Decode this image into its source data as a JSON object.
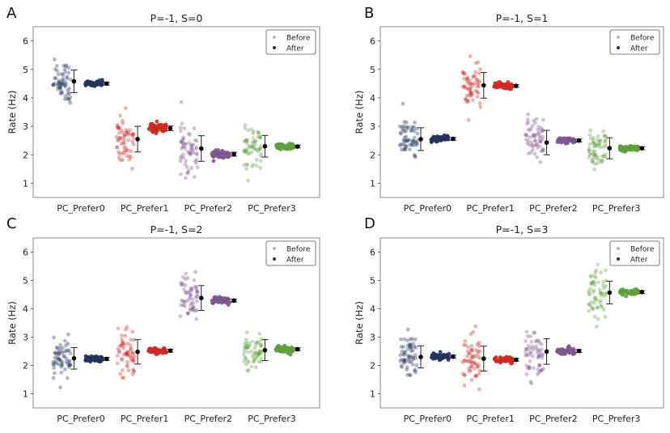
{
  "chart_data": [
    {
      "type": "scatter",
      "panel_label": "A",
      "title": "P=-1, S=0",
      "xlabel": "",
      "ylabel": "Rate (Hz)",
      "ylim": [
        0.5,
        6.5
      ],
      "yticks": [
        1,
        2,
        3,
        4,
        5,
        6
      ],
      "categories": [
        "PC_Prefer0",
        "PC_Prefer1",
        "PC_Prefer2",
        "PC_Prefer3"
      ],
      "legend": {
        "entries": [
          "Before",
          "After"
        ],
        "position": "top-right"
      },
      "series": [
        {
          "name": "Before",
          "mean": [
            4.58,
            2.55,
            2.22,
            2.3
          ],
          "sd": [
            0.4,
            0.45,
            0.45,
            0.38
          ]
        },
        {
          "name": "After",
          "mean": [
            4.5,
            2.93,
            2.02,
            2.29
          ],
          "sd": [
            0.05,
            0.08,
            0.07,
            0.05
          ]
        }
      ]
    },
    {
      "type": "scatter",
      "panel_label": "B",
      "title": "P=-1, S=1",
      "xlabel": "",
      "ylabel": "Rate (Hz)",
      "ylim": [
        0.5,
        6.5
      ],
      "yticks": [
        1,
        2,
        3,
        4,
        5,
        6
      ],
      "categories": [
        "PC_Prefer0",
        "PC_Prefer1",
        "PC_Prefer2",
        "PC_Prefer3"
      ],
      "legend": {
        "entries": [
          "Before",
          "After"
        ],
        "position": "top-right"
      },
      "series": [
        {
          "name": "Before",
          "mean": [
            2.55,
            4.44,
            2.43,
            2.23
          ],
          "sd": [
            0.4,
            0.45,
            0.43,
            0.37
          ]
        },
        {
          "name": "After",
          "mean": [
            2.56,
            4.42,
            2.5,
            2.23
          ],
          "sd": [
            0.05,
            0.05,
            0.05,
            0.05
          ]
        }
      ]
    },
    {
      "type": "scatter",
      "panel_label": "C",
      "title": "P=-1, S=2",
      "xlabel": "",
      "ylabel": "Rate (Hz)",
      "ylim": [
        0.5,
        6.5
      ],
      "yticks": [
        1,
        2,
        3,
        4,
        5,
        6
      ],
      "categories": [
        "PC_Prefer0",
        "PC_Prefer1",
        "PC_Prefer2",
        "PC_Prefer3"
      ],
      "legend": {
        "entries": [
          "Before",
          "After"
        ],
        "position": "top-right"
      },
      "series": [
        {
          "name": "Before",
          "mean": [
            2.25,
            2.48,
            4.38,
            2.54
          ],
          "sd": [
            0.38,
            0.43,
            0.44,
            0.37
          ]
        },
        {
          "name": "After",
          "mean": [
            2.23,
            2.52,
            4.29,
            2.57
          ],
          "sd": [
            0.05,
            0.05,
            0.05,
            0.05
          ]
        }
      ]
    },
    {
      "type": "scatter",
      "panel_label": "D",
      "title": "P=-1, S=3",
      "xlabel": "",
      "ylabel": "Rate (Hz)",
      "ylim": [
        0.5,
        6.5
      ],
      "yticks": [
        1,
        2,
        3,
        4,
        5,
        6
      ],
      "categories": [
        "PC_Prefer0",
        "PC_Prefer1",
        "PC_Prefer2",
        "PC_Prefer3"
      ],
      "legend": {
        "entries": [
          "Before",
          "After"
        ],
        "position": "top-right"
      },
      "series": [
        {
          "name": "Before",
          "mean": [
            2.3,
            2.24,
            2.49,
            4.57
          ],
          "sd": [
            0.39,
            0.44,
            0.45,
            0.4
          ]
        },
        {
          "name": "After",
          "mean": [
            2.31,
            2.2,
            2.51,
            4.59
          ],
          "sd": [
            0.05,
            0.05,
            0.05,
            0.05
          ]
        }
      ]
    }
  ],
  "colors": {
    "categories": [
      "#22335e",
      "#cc2a22",
      "#7e578e",
      "#5f9e3e"
    ],
    "mean_marker": "#000000",
    "frame": "#888888"
  }
}
